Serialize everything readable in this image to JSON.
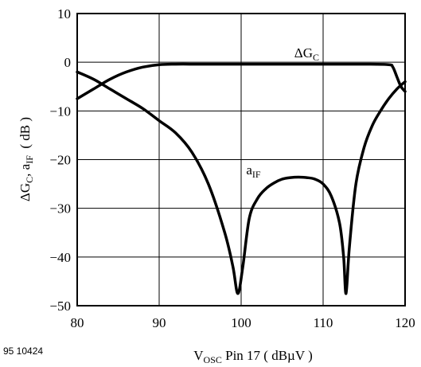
{
  "figure_id": "95 10424",
  "chart_data": {
    "type": "line",
    "xlabel": {
      "main": "V",
      "sub": "OSC",
      "rest": " Pin 17 ( dBµV )"
    },
    "ylabel": {
      "p1": "ΔG",
      "s1": "C",
      "p2": ", a",
      "s2": "IF",
      "p3": "  ( dB )"
    },
    "xlim": [
      80,
      120
    ],
    "ylim": [
      -50,
      10
    ],
    "x_ticks": [
      80,
      90,
      100,
      110,
      120
    ],
    "x_tick_labels": [
      "80",
      "90",
      "100",
      "110",
      "120"
    ],
    "y_ticks": [
      10,
      0,
      -10,
      -20,
      -30,
      -40,
      -50
    ],
    "y_tick_labels": [
      "10",
      "0",
      "−10",
      "−20",
      "−30",
      "−40",
      "−50"
    ],
    "grid": true,
    "series": [
      {
        "name": {
          "main": "ΔG",
          "sub": "C"
        },
        "label_at": [
          108,
          1
        ],
        "points": [
          [
            80,
            -7.5
          ],
          [
            82,
            -5.5
          ],
          [
            84,
            -3.5
          ],
          [
            86,
            -2
          ],
          [
            88,
            -1
          ],
          [
            90,
            -0.5
          ],
          [
            92,
            -0.4
          ],
          [
            95,
            -0.4
          ],
          [
            100,
            -0.4
          ],
          [
            105,
            -0.4
          ],
          [
            110,
            -0.4
          ],
          [
            115,
            -0.4
          ],
          [
            118,
            -0.5
          ],
          [
            118.5,
            -1
          ],
          [
            119,
            -3
          ],
          [
            119.5,
            -5
          ],
          [
            120,
            -6
          ]
        ]
      },
      {
        "name": {
          "main": "a",
          "sub": "IF"
        },
        "label_at": [
          101.5,
          -23
        ],
        "points": [
          [
            80,
            -2
          ],
          [
            82,
            -3.5
          ],
          [
            84,
            -5.5
          ],
          [
            86,
            -7.5
          ],
          [
            88,
            -9.5
          ],
          [
            90,
            -12
          ],
          [
            92,
            -14.5
          ],
          [
            94,
            -18.5
          ],
          [
            96,
            -25
          ],
          [
            98,
            -35
          ],
          [
            99,
            -42
          ],
          [
            99.6,
            -47.5
          ],
          [
            100.2,
            -42
          ],
          [
            101,
            -32
          ],
          [
            102,
            -28
          ],
          [
            103,
            -26
          ],
          [
            104,
            -24.8
          ],
          [
            105,
            -24
          ],
          [
            106,
            -23.7
          ],
          [
            107,
            -23.6
          ],
          [
            108,
            -23.7
          ],
          [
            109,
            -24
          ],
          [
            110,
            -25
          ],
          [
            111,
            -27.5
          ],
          [
            112,
            -33
          ],
          [
            112.5,
            -40
          ],
          [
            112.8,
            -47.5
          ],
          [
            113.2,
            -38
          ],
          [
            114,
            -25
          ],
          [
            115,
            -17.5
          ],
          [
            116,
            -13
          ],
          [
            117,
            -10
          ],
          [
            118,
            -7.5
          ],
          [
            119,
            -5.5
          ],
          [
            120,
            -4
          ]
        ]
      }
    ]
  }
}
